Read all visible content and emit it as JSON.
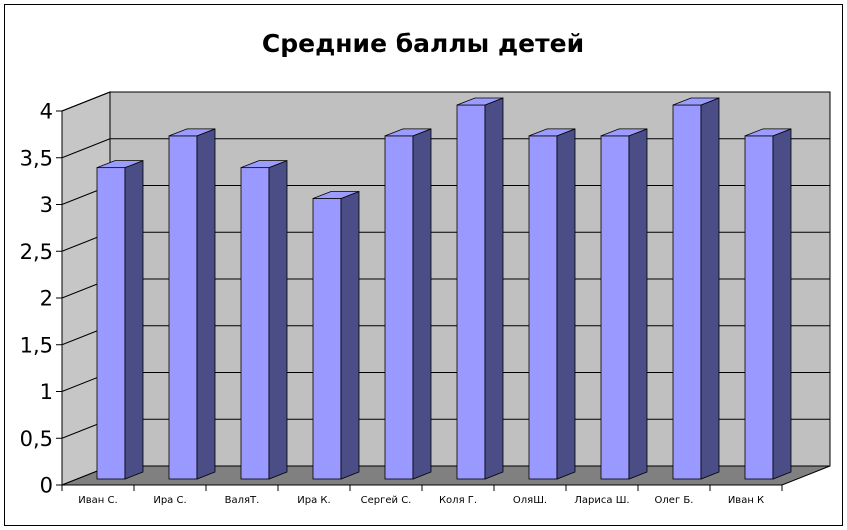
{
  "chart_data": {
    "type": "bar",
    "three_d": true,
    "title": "Средние баллы детей",
    "categories": [
      "Иван С.",
      "Ира С.",
      "ВаляТ.",
      "Ира К.",
      "Сергей С.",
      "Коля Г.",
      "ОляШ.",
      "Лариса Ш.",
      "Олег Б.",
      "Иван К"
    ],
    "values": [
      3.33,
      3.67,
      3.33,
      3,
      3.67,
      4,
      3.67,
      3.67,
      4,
      3.67
    ],
    "ylim": [
      0,
      4
    ],
    "yticks": [
      {
        "value": 0,
        "label": "0"
      },
      {
        "value": 0.5,
        "label": "0,5"
      },
      {
        "value": 1,
        "label": "1"
      },
      {
        "value": 1.5,
        "label": "1,5"
      },
      {
        "value": 2,
        "label": "2"
      },
      {
        "value": 2.5,
        "label": "2,5"
      },
      {
        "value": 3,
        "label": "3"
      },
      {
        "value": 3.5,
        "label": "3,5"
      },
      {
        "value": 4,
        "label": "4"
      }
    ],
    "grid": true,
    "legend": false,
    "colors": {
      "bar_front": "#9999ff",
      "bar_side": "#4b4d87",
      "bar_top": "#9c9cff",
      "back_wall": "#c0c0c0",
      "side_wall": "#c6c6c6",
      "floor": "#808080"
    }
  }
}
